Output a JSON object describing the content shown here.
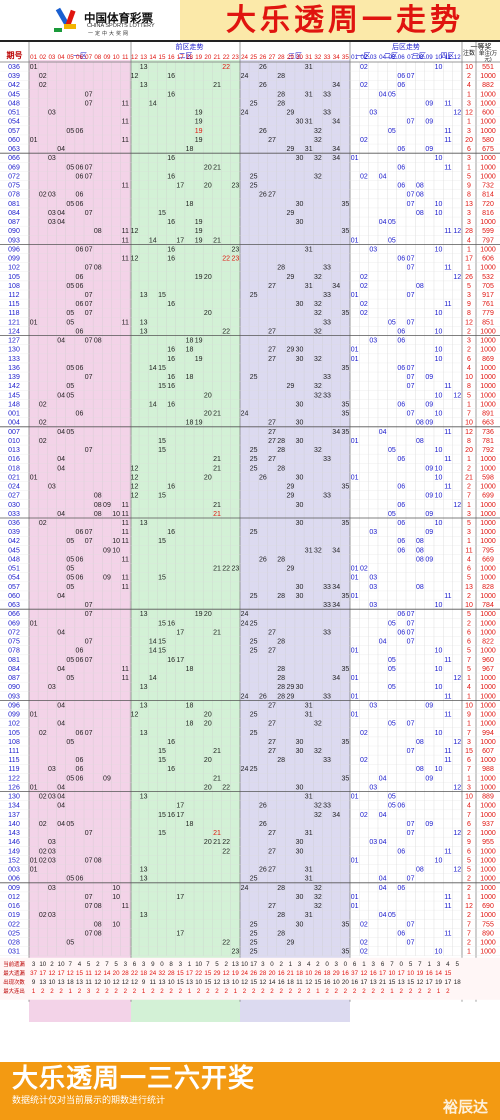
{
  "header": {
    "brand_cn": "中国体育彩票",
    "brand_en": "CHINA SPORTS LOTTERY",
    "brand_slogan": "一定中大奖网",
    "title": "大乐透周一走势"
  },
  "table_header": {
    "col_period": "期号",
    "front_section": "前区走势",
    "zone1": "一区",
    "zone2": "二区",
    "zone3": "三区",
    "back_section": "后区走势",
    "back_zones": [
      "一区",
      "二区",
      "三区",
      "四区"
    ],
    "prize_section": "一等奖",
    "col_count": "注数",
    "col_amount": "单注(万元)"
  },
  "rows": [
    {
      "p": "036",
      "c": "10",
      "a": "551",
      "f": [
        1,
        13,
        22,
        26,
        31
      ],
      "b": [
        2,
        10
      ]
    },
    {
      "p": "039",
      "c": "2",
      "a": "1000",
      "f": [
        2,
        12,
        16,
        24,
        28
      ],
      "b": [
        6,
        7
      ]
    },
    {
      "p": "042",
      "c": "4",
      "a": "882",
      "f": [
        2,
        13,
        21,
        26,
        34
      ],
      "b": [
        2,
        6
      ]
    },
    {
      "p": "045",
      "c": "1",
      "a": "1000",
      "f": [
        7,
        16,
        28,
        31,
        33
      ],
      "b": [
        4,
        5
      ]
    },
    {
      "p": "048",
      "c": "3",
      "a": "1000",
      "f": [
        7,
        11,
        14,
        25,
        28
      ],
      "b": [
        9,
        11
      ]
    },
    {
      "p": "051",
      "c": "12",
      "a": "600",
      "f": [
        3,
        19,
        24,
        29,
        33
      ],
      "b": [
        3,
        12
      ]
    },
    {
      "p": "054",
      "c": "1",
      "a": "1000",
      "f": [
        11,
        19,
        30,
        31,
        34
      ],
      "b": [
        7,
        9
      ]
    },
    {
      "p": "057",
      "c": "3",
      "a": "1000",
      "f": [
        5,
        6,
        19,
        26,
        32
      ],
      "b": [
        5,
        11
      ]
    },
    {
      "p": "060",
      "c": "20",
      "a": "580",
      "f": [
        1,
        11,
        19,
        27,
        32
      ],
      "b": [
        2,
        11
      ]
    },
    {
      "p": "063",
      "c": "6",
      "a": "675",
      "f": [
        4,
        18,
        29,
        31,
        34
      ],
      "b": [
        6,
        9
      ]
    },
    {
      "p": "066",
      "c": "3",
      "a": "1000",
      "f": [
        3,
        16,
        30,
        32,
        34
      ],
      "b": [
        1,
        10
      ]
    },
    {
      "p": "069",
      "c": "1",
      "a": "1000",
      "f": [
        5,
        6,
        7,
        20,
        21
      ],
      "b": [
        6,
        11
      ]
    },
    {
      "p": "072",
      "c": "5",
      "a": "1000",
      "f": [
        6,
        7,
        16,
        25,
        32
      ],
      "b": [
        2,
        4
      ]
    },
    {
      "p": "075",
      "c": "9",
      "a": "732",
      "f": [
        11,
        17,
        20,
        23,
        25
      ],
      "b": [
        6,
        8
      ]
    },
    {
      "p": "078",
      "c": "8",
      "a": "814",
      "f": [
        2,
        3,
        6,
        26,
        27
      ],
      "b": [
        7,
        8
      ]
    },
    {
      "p": "081",
      "c": "13",
      "a": "720",
      "f": [
        5,
        6,
        18,
        30,
        35
      ],
      "b": [
        7,
        10
      ]
    },
    {
      "p": "084",
      "c": "3",
      "a": "816",
      "f": [
        3,
        4,
        7,
        15,
        29
      ],
      "b": [
        8,
        10
      ]
    },
    {
      "p": "087",
      "c": "3",
      "a": "1000",
      "f": [
        3,
        4,
        16,
        19,
        30
      ],
      "b": [
        4,
        5
      ]
    },
    {
      "p": "090",
      "c": "28",
      "a": "599",
      "f": [
        8,
        11,
        12,
        19,
        35
      ],
      "b": [
        11,
        12
      ]
    },
    {
      "p": "093",
      "c": "4",
      "a": "797",
      "f": [
        11,
        14,
        17,
        19,
        21
      ],
      "b": [
        1,
        5
      ]
    },
    {
      "p": "096",
      "c": "1",
      "a": "1000",
      "f": [
        6,
        7,
        16,
        23,
        31
      ],
      "b": [
        3,
        10
      ]
    },
    {
      "p": "099",
      "c": "17",
      "a": "606",
      "f": [
        11,
        12,
        16,
        22,
        23
      ],
      "b": [
        6,
        7
      ]
    },
    {
      "p": "102",
      "c": "1",
      "a": "1000",
      "f": [
        7,
        8,
        28,
        33
      ],
      "b": [
        7,
        11
      ]
    },
    {
      "p": "105",
      "c": "26",
      "a": "532",
      "f": [
        6,
        19,
        20,
        29,
        32
      ],
      "b": [
        2,
        12
      ]
    },
    {
      "p": "108",
      "c": "5",
      "a": "705",
      "f": [
        5,
        6,
        27,
        31,
        34
      ],
      "b": [
        2,
        8
      ]
    },
    {
      "p": "112",
      "c": "3",
      "a": "917",
      "f": [
        7,
        13,
        15,
        25,
        33
      ],
      "b": [
        1,
        7
      ]
    },
    {
      "p": "115",
      "c": "9",
      "a": "761",
      "f": [
        6,
        7,
        16,
        30,
        32
      ],
      "b": [
        2,
        11
      ]
    },
    {
      "p": "118",
      "c": "8",
      "a": "779",
      "f": [
        5,
        7,
        20,
        32,
        35
      ],
      "b": [
        2,
        10
      ]
    },
    {
      "p": "121",
      "c": "12",
      "a": "851",
      "f": [
        1,
        5,
        11,
        13,
        33
      ],
      "b": [
        5,
        7
      ]
    },
    {
      "p": "124",
      "c": "2",
      "a": "1000",
      "f": [
        6,
        13,
        22,
        27,
        32
      ],
      "b": [
        6,
        10
      ]
    },
    {
      "p": "127",
      "c": "3",
      "a": "1000",
      "f": [
        4,
        7,
        8,
        18,
        19
      ],
      "b": [
        3,
        6
      ]
    },
    {
      "p": "130",
      "c": "2",
      "a": "1000",
      "f": [
        16,
        18,
        27,
        29,
        30
      ],
      "b": [
        1,
        10
      ]
    },
    {
      "p": "133",
      "c": "6",
      "a": "869",
      "f": [
        16,
        19,
        27,
        30,
        32
      ],
      "b": [
        1,
        10
      ]
    },
    {
      "p": "136",
      "c": "4",
      "a": "1000",
      "f": [
        5,
        6,
        14,
        15,
        35
      ],
      "b": [
        6,
        7
      ]
    },
    {
      "p": "139",
      "c": "10",
      "a": "1000",
      "f": [
        7,
        16,
        18,
        25,
        33
      ],
      "b": [
        7,
        9
      ]
    },
    {
      "p": "142",
      "c": "8",
      "a": "1000",
      "f": [
        5,
        15,
        16,
        29,
        32
      ],
      "b": [
        7,
        11
      ]
    },
    {
      "p": "145",
      "c": "5",
      "a": "1000",
      "f": [
        4,
        5,
        20,
        32,
        33
      ],
      "b": [
        10,
        12
      ]
    },
    {
      "p": "148",
      "c": "1",
      "a": "1000",
      "f": [
        2,
        14,
        16,
        30,
        35
      ],
      "b": [
        6,
        9
      ]
    },
    {
      "p": "001",
      "c": "7",
      "a": "891",
      "f": [
        6,
        20,
        21,
        24,
        35
      ],
      "b": [
        7,
        10
      ]
    },
    {
      "p": "004",
      "c": "10",
      "a": "663",
      "f": [
        2,
        18,
        19,
        27,
        30
      ],
      "b": [
        8,
        9
      ]
    },
    {
      "p": "007",
      "c": "12",
      "a": "736",
      "f": [
        4,
        5,
        27,
        34,
        35
      ],
      "b": [
        4,
        11
      ]
    },
    {
      "p": "010",
      "c": "8",
      "a": "781",
      "f": [
        2,
        15,
        27,
        28,
        30
      ],
      "b": [
        1,
        8
      ]
    },
    {
      "p": "013",
      "c": "20",
      "a": "792",
      "f": [
        7,
        15,
        25,
        28,
        32
      ],
      "b": [
        5,
        10
      ]
    },
    {
      "p": "016",
      "c": "1",
      "a": "1000",
      "f": [
        4,
        21,
        25,
        27,
        33
      ],
      "b": [
        6,
        11
      ]
    },
    {
      "p": "018",
      "c": "2",
      "a": "1000",
      "f": [
        4,
        12,
        21,
        25,
        28
      ],
      "b": [
        9,
        10
      ]
    },
    {
      "p": "021",
      "c": "21",
      "a": "598",
      "f": [
        1,
        12,
        20,
        26,
        30
      ],
      "b": [
        1,
        10
      ]
    },
    {
      "p": "024",
      "c": "2",
      "a": "1000",
      "f": [
        3,
        12,
        16,
        29,
        35
      ],
      "b": [
        6,
        11
      ]
    },
    {
      "p": "027",
      "c": "7",
      "a": "699",
      "f": [
        8,
        12,
        15,
        29,
        33
      ],
      "b": [
        9,
        10
      ]
    },
    {
      "p": "030",
      "c": "1",
      "a": "1000",
      "f": [
        8,
        9,
        11,
        21,
        30
      ],
      "b": [
        6,
        12
      ]
    },
    {
      "p": "033",
      "c": "3",
      "a": "1000",
      "f": [
        4,
        8,
        10,
        11,
        21
      ],
      "b": [
        5,
        9
      ]
    },
    {
      "p": "036",
      "c": "5",
      "a": "1000",
      "f": [
        2,
        11,
        13,
        30,
        35
      ],
      "b": [
        6,
        10
      ]
    },
    {
      "p": "039",
      "c": "3",
      "a": "1000",
      "f": [
        6,
        7,
        11,
        16,
        25
      ],
      "b": [
        3,
        9
      ]
    },
    {
      "p": "042",
      "c": "1",
      "a": "1000",
      "f": [
        5,
        7,
        10,
        11,
        15
      ],
      "b": [
        6,
        8
      ]
    },
    {
      "p": "045",
      "c": "11",
      "a": "795",
      "f": [
        9,
        10,
        31,
        32,
        34
      ],
      "b": [
        6,
        8
      ]
    },
    {
      "p": "048",
      "c": "4",
      "a": "669",
      "f": [
        5,
        6,
        11,
        26,
        28
      ],
      "b": [
        8,
        9
      ]
    },
    {
      "p": "051",
      "c": "6",
      "a": "1000",
      "f": [
        5,
        21,
        22,
        23,
        29
      ],
      "b": [
        1,
        2
      ]
    },
    {
      "p": "054",
      "c": "5",
      "a": "1000",
      "f": [
        5,
        6,
        9,
        11,
        15
      ],
      "b": [
        1,
        3
      ]
    },
    {
      "p": "057",
      "c": "13",
      "a": "828",
      "f": [
        5,
        11,
        30,
        33,
        34
      ],
      "b": [
        3,
        8
      ]
    },
    {
      "p": "060",
      "c": "2",
      "a": "1000",
      "f": [
        4,
        25,
        28,
        30,
        35
      ],
      "b": [
        1,
        11
      ]
    },
    {
      "p": "063",
      "c": "10",
      "a": "784",
      "f": [
        7,
        33,
        34
      ],
      "b": [
        3,
        10
      ]
    },
    {
      "p": "066",
      "c": "5",
      "a": "1000",
      "f": [
        7,
        13,
        19,
        20,
        24
      ],
      "b": [
        6,
        7
      ]
    },
    {
      "p": "069",
      "c": "2",
      "a": "1000",
      "f": [
        1,
        15,
        16,
        24,
        25
      ],
      "b": [
        5,
        7
      ]
    },
    {
      "p": "072",
      "c": "6",
      "a": "1000",
      "f": [
        4,
        17,
        21,
        27,
        33
      ],
      "b": [
        6,
        7
      ]
    },
    {
      "p": "075",
      "c": "6",
      "a": "822",
      "f": [
        7,
        14,
        15,
        25,
        28
      ],
      "b": [
        4,
        7
      ]
    },
    {
      "p": "078",
      "c": "5",
      "a": "1000",
      "f": [
        6,
        14,
        15,
        25,
        27
      ],
      "b": [
        1,
        10
      ]
    },
    {
      "p": "081",
      "c": "7",
      "a": "960",
      "f": [
        5,
        6,
        7,
        16,
        17
      ],
      "b": [
        5,
        11
      ]
    },
    {
      "p": "084",
      "c": "5",
      "a": "967",
      "f": [
        4,
        11,
        18,
        28,
        35
      ],
      "b": [
        5,
        10
      ]
    },
    {
      "p": "087",
      "c": "1",
      "a": "1000",
      "f": [
        5,
        11,
        14,
        28,
        34
      ],
      "b": [
        1,
        12
      ]
    },
    {
      "p": "090",
      "c": "4",
      "a": "1000",
      "f": [
        3,
        13,
        28,
        29,
        30
      ],
      "b": [
        5,
        10
      ]
    },
    {
      "p": "093",
      "c": "1",
      "a": "1000",
      "f": [
        24,
        26,
        28,
        29,
        33
      ],
      "b": [
        1,
        11
      ]
    },
    {
      "p": "096",
      "c": "10",
      "a": "1000",
      "f": [
        4,
        13,
        18,
        27,
        31
      ],
      "b": [
        3,
        9
      ]
    },
    {
      "p": "099",
      "c": "9",
      "a": "1000",
      "f": [
        1,
        12,
        20,
        25,
        31
      ],
      "b": [
        1,
        11
      ]
    },
    {
      "p": "102",
      "c": "1",
      "a": "1000",
      "f": [
        4,
        18,
        20,
        27,
        32
      ],
      "b": [
        5,
        7
      ]
    },
    {
      "p": "105",
      "c": "7",
      "a": "994",
      "f": [
        2,
        6,
        7,
        13,
        25
      ],
      "b": [
        2,
        10
      ]
    },
    {
      "p": "108",
      "c": "3",
      "a": "1000",
      "f": [
        5,
        16,
        27,
        30,
        35
      ],
      "b": [
        8,
        12
      ]
    },
    {
      "p": "111",
      "c": "15",
      "a": "607",
      "f": [
        15,
        21,
        27,
        30,
        32
      ],
      "b": [
        7,
        11
      ]
    },
    {
      "p": "115",
      "c": "6",
      "a": "1000",
      "f": [
        6,
        15,
        20,
        28,
        33
      ],
      "b": [
        2,
        11
      ]
    },
    {
      "p": "119",
      "c": "7",
      "a": "988",
      "f": [
        3,
        6,
        16,
        24,
        25
      ],
      "b": [
        8,
        10
      ]
    },
    {
      "p": "122",
      "c": "1",
      "a": "1000",
      "f": [
        5,
        6,
        9,
        21,
        35
      ],
      "b": [
        4,
        9
      ]
    },
    {
      "p": "126",
      "c": "3",
      "a": "1000",
      "f": [
        1,
        4,
        20,
        22,
        30
      ],
      "b": [
        3,
        12
      ]
    },
    {
      "p": "130",
      "c": "10",
      "a": "889",
      "f": [
        2,
        3,
        4,
        13,
        31
      ],
      "b": [
        1,
        5
      ]
    },
    {
      "p": "134",
      "c": "4",
      "a": "1000",
      "f": [
        4,
        17,
        26,
        32,
        33
      ],
      "b": [
        5,
        6
      ]
    },
    {
      "p": "137",
      "c": "7",
      "a": "1000",
      "f": [
        15,
        16,
        17,
        32,
        34
      ],
      "b": [
        2,
        4
      ]
    },
    {
      "p": "140",
      "c": "6",
      "a": "937",
      "f": [
        2,
        4,
        5,
        18,
        26
      ],
      "b": [
        7,
        9
      ]
    },
    {
      "p": "143",
      "c": "2",
      "a": "1000",
      "f": [
        7,
        15,
        21,
        27,
        31
      ],
      "b": [
        7,
        12
      ]
    },
    {
      "p": "146",
      "c": "9",
      "a": "955",
      "f": [
        3,
        20,
        21,
        22,
        30
      ],
      "b": [
        3,
        4
      ]
    },
    {
      "p": "149",
      "c": "6",
      "a": "1000",
      "f": [
        2,
        3,
        22,
        27,
        30
      ],
      "b": [
        6,
        11
      ]
    },
    {
      "p": "152",
      "c": "5",
      "a": "1000",
      "f": [
        1,
        2,
        3,
        7,
        8
      ],
      "b": [
        1,
        10
      ]
    },
    {
      "p": "003",
      "c": "5",
      "a": "1000",
      "f": [
        1,
        13,
        26,
        27,
        31
      ],
      "b": [
        8,
        12
      ]
    },
    {
      "p": "006",
      "c": "2",
      "a": "1000",
      "f": [
        5,
        6,
        13,
        25,
        31
      ],
      "b": [
        4,
        7
      ]
    },
    {
      "p": "009",
      "c": "2",
      "a": "1000",
      "f": [
        3,
        10,
        24,
        28,
        32
      ],
      "b": [
        4,
        6
      ]
    },
    {
      "p": "012",
      "c": "1",
      "a": "1000",
      "f": [
        7,
        10,
        17,
        30,
        32
      ],
      "b": [
        1,
        11
      ]
    },
    {
      "p": "016",
      "c": "12",
      "a": "690",
      "f": [
        7,
        8,
        11,
        27,
        32
      ],
      "b": [
        1,
        11
      ]
    },
    {
      "p": "019",
      "c": "2",
      "a": "1000",
      "f": [
        2,
        3,
        13,
        28,
        31
      ],
      "b": [
        4,
        5
      ]
    },
    {
      "p": "022",
      "c": "7",
      "a": "755",
      "f": [
        8,
        10,
        25,
        30,
        35
      ],
      "b": [
        2,
        7
      ]
    },
    {
      "p": "025",
      "c": "7",
      "a": "890",
      "f": [
        7,
        8,
        17,
        25,
        28
      ],
      "b": [
        6,
        11
      ]
    },
    {
      "p": "028",
      "c": "2",
      "a": "1000",
      "f": [
        5,
        22,
        25,
        29
      ],
      "b": [
        2,
        7
      ]
    },
    {
      "p": "031",
      "c": "1",
      "a": "1000",
      "f": [
        23,
        25,
        35
      ],
      "b": [
        2,
        10
      ]
    }
  ],
  "stats": {
    "labels": [
      "当前遗漏",
      "最大遗漏",
      "出现次数",
      "最大连出"
    ],
    "values": [
      "3 10 2 10 7 4 5 2 7 5 3 6 3 9 0 8 3 1 10 7 5 2 13 10 17 3 0 2 1 3 4 2 0 3 0 6 1 3 6 7 0 5 7 1 3 4 5",
      "37 17 12 17 12 15 11 12 14 20 28 22 18 24 32 28 15 17 22 15 29 12 19 24 26 28 20 16 21 18 10 26 18 29 16 37 12 16 17 10 17 10 19 16 14 15",
      "9 13 10 13 18 13 11 12 10 12 12 12 9 11 13 10 15 13 10 15 12 13 10 12 15 12 14 16 18 11 12 15 16 10 20 16 17 13 21 15 13 15 12 17 19 17 18",
      "1 2 2 2 1 2 3 2 2 2 2 2 1 2 2 2 2 1 2 2 2 2 1 2 2 2 2 2 2 2 2 1 2 2 2 2 2 2 2 1 2 2 2 2 1 2"
    ]
  },
  "footer": {
    "title": "大乐透周一三六开奖",
    "subtitle": "数据统计仅对当前展示的期数进行统计",
    "watermark": "裕辰达"
  },
  "colors": {
    "zone1": "#f3d3e8",
    "zone2": "#d3f1d6",
    "zone3": "#dcdaf0",
    "front_digit": "#222222",
    "hot_digit": "#e0140f",
    "back_digit": "#1a1acc",
    "period_digit": "#1a1acc",
    "accent": "#f39a12"
  }
}
